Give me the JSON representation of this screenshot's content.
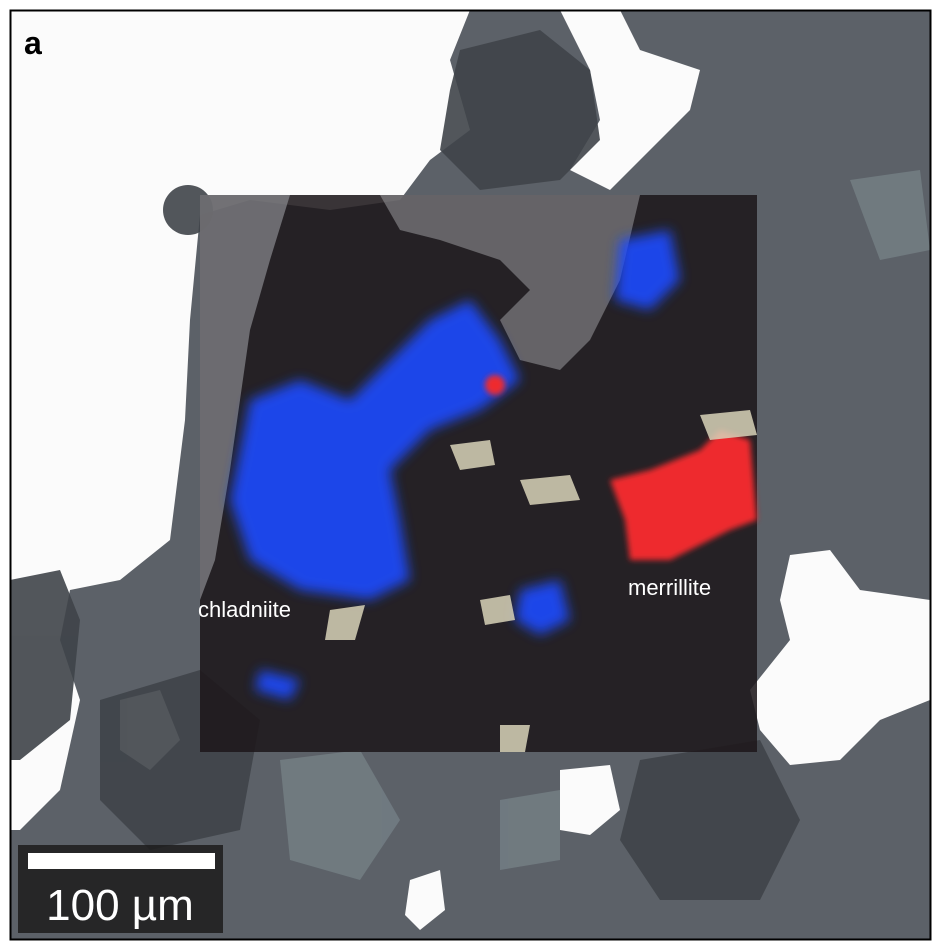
{
  "panel_label": "a",
  "labels": {
    "left": "chladniite",
    "right": "merrillite"
  },
  "scale_bar": {
    "label": "100 µm"
  }
}
